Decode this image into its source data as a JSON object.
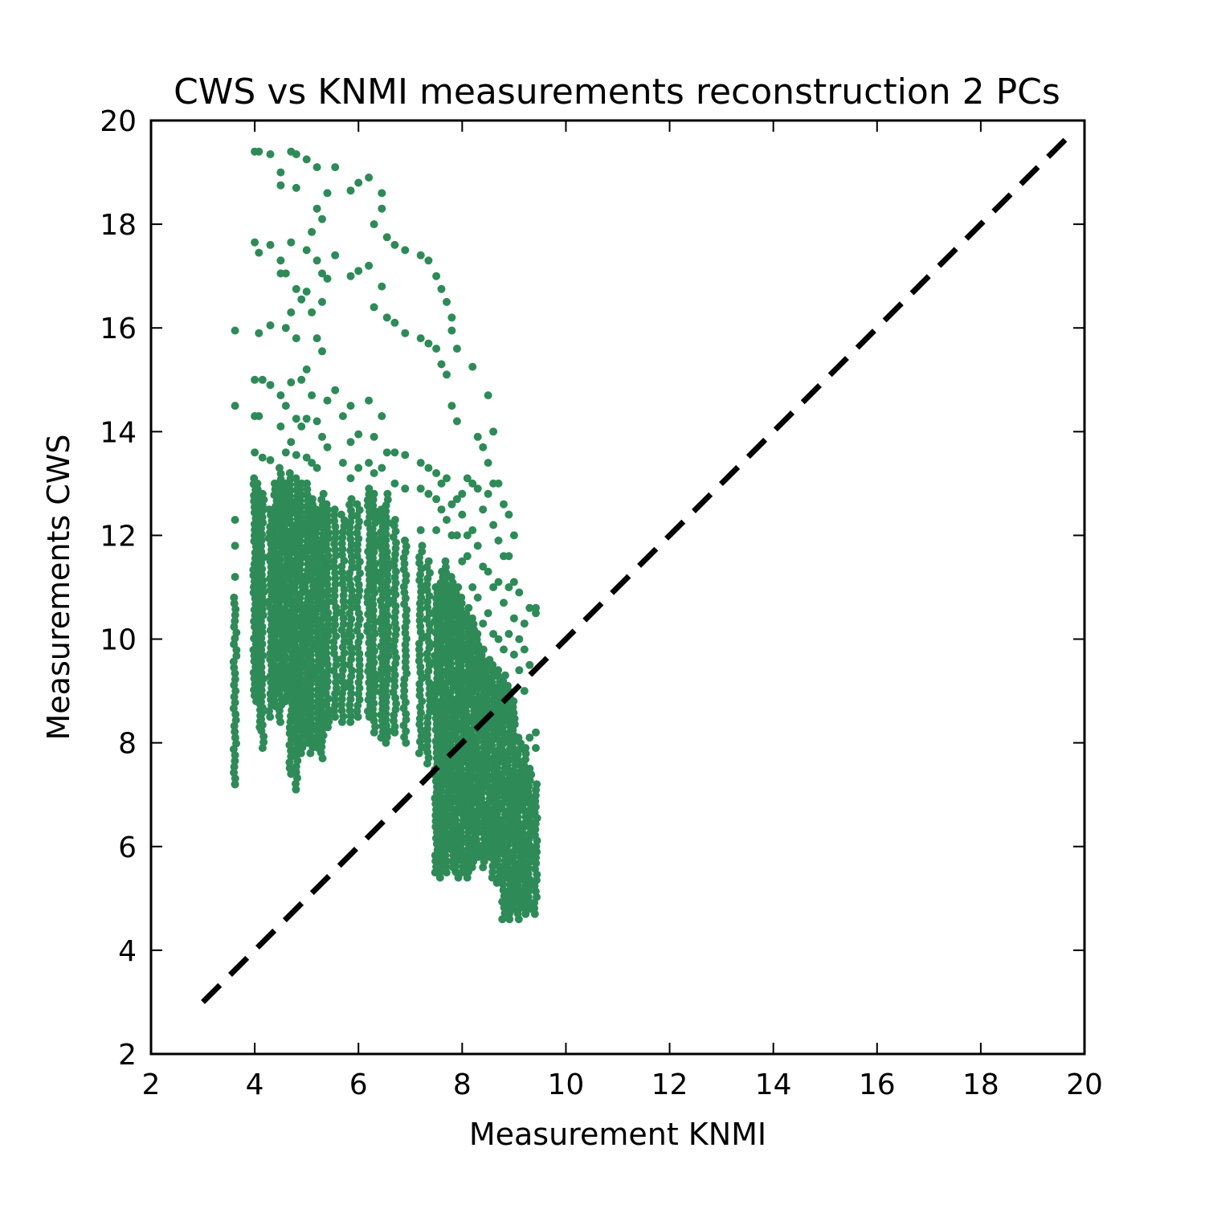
{
  "chart_data": {
    "type": "scatter",
    "title": "CWS vs KNMI measurements reconstruction 2 PCs",
    "xlabel": "Measurement KNMI",
    "ylabel": "Measurements CWS",
    "xlim": [
      2,
      20
    ],
    "ylim": [
      2,
      20
    ],
    "xticks": [
      "2",
      "4",
      "6",
      "8",
      "10",
      "12",
      "14",
      "16",
      "18",
      "20"
    ],
    "yticks": [
      "2",
      "4",
      "6",
      "8",
      "10",
      "12",
      "14",
      "16",
      "18",
      "20"
    ],
    "grid": false,
    "point_color": "#2e8b57",
    "reference_line": {
      "style": "dashed",
      "color": "#000000",
      "x": [
        3.0,
        19.75
      ],
      "y": [
        3.0,
        19.75
      ]
    },
    "columns": [
      {
        "x": 3.62,
        "ymin": 7.2,
        "ymax": 10.8,
        "scatter": [
          7.2,
          11.2,
          11.8,
          12.3,
          14.5,
          15.95
        ]
      },
      {
        "x": 4.0,
        "ymin": 8.8,
        "ymax": 13.1,
        "scatter": [
          13.6,
          14.3,
          15.0,
          17.65,
          19.4
        ]
      },
      {
        "x": 4.08,
        "ymin": 8.3,
        "ymax": 13.0,
        "scatter": [
          14.3,
          15.9,
          17.45,
          19.4
        ]
      },
      {
        "x": 4.15,
        "ymin": 7.9,
        "ymax": 12.8,
        "scatter": [
          13.5,
          15.0
        ]
      },
      {
        "x": 4.3,
        "ymin": 8.5,
        "ymax": 12.5,
        "scatter": [
          13.45,
          14.9,
          16.05,
          17.6,
          19.35
        ]
      },
      {
        "x": 4.4,
        "ymin": 8.7,
        "ymax": 13.0
      },
      {
        "x": 4.5,
        "ymin": 8.4,
        "ymax": 13.3,
        "scatter": [
          14.1,
          14.7,
          17.05,
          17.3,
          18.75,
          19.0
        ]
      },
      {
        "x": 4.6,
        "ymin": 8.8,
        "ymax": 13.0,
        "scatter": [
          13.6,
          14.5,
          16.0,
          17.05
        ]
      },
      {
        "x": 4.7,
        "ymin": 7.4,
        "ymax": 13.2,
        "scatter": [
          13.8,
          14.95,
          16.3,
          17.65,
          19.4
        ]
      },
      {
        "x": 4.8,
        "ymin": 7.1,
        "ymax": 13.1,
        "scatter": [
          13.55,
          14.25,
          15.8,
          16.75,
          18.7,
          19.35
        ]
      },
      {
        "x": 4.9,
        "ymin": 7.8,
        "ymax": 13.0,
        "scatter": [
          14.1,
          15.0,
          16.55
        ]
      },
      {
        "x": 5.0,
        "ymin": 8.0,
        "ymax": 13.0,
        "scatter": [
          13.5,
          14.25,
          15.2,
          16.7,
          17.5,
          19.25
        ]
      },
      {
        "x": 5.1,
        "ymin": 7.8,
        "ymax": 12.7,
        "scatter": [
          13.4,
          14.7,
          16.3,
          17.85
        ]
      },
      {
        "x": 5.2,
        "ymin": 7.9,
        "ymax": 12.5,
        "scatter": [
          13.3,
          14.2,
          15.8,
          17.3,
          18.3,
          19.1
        ]
      },
      {
        "x": 5.3,
        "ymin": 7.7,
        "ymax": 12.8,
        "scatter": [
          13.9,
          15.55,
          16.5,
          17.05,
          18.1
        ]
      },
      {
        "x": 5.4,
        "ymin": 8.3,
        "ymax": 12.6,
        "scatter": [
          13.7,
          14.6,
          16.95,
          18.6
        ]
      },
      {
        "x": 5.55,
        "ymin": 8.5,
        "ymax": 12.5,
        "scatter": [
          14.8,
          17.4,
          19.1
        ]
      },
      {
        "x": 5.7,
        "ymin": 8.4,
        "ymax": 12.4,
        "scatter": [
          13.4,
          14.3
        ]
      },
      {
        "x": 5.85,
        "ymin": 8.4,
        "ymax": 12.7,
        "scatter": [
          13.1,
          13.8,
          14.5,
          17.0,
          18.65
        ]
      },
      {
        "x": 6.0,
        "ymin": 8.5,
        "ymax": 12.6,
        "scatter": [
          13.3,
          13.95,
          17.1,
          18.8
        ]
      },
      {
        "x": 6.2,
        "ymin": 8.5,
        "ymax": 12.9,
        "scatter": [
          13.4,
          14.6,
          17.2,
          18.9
        ]
      },
      {
        "x": 6.3,
        "ymin": 8.2,
        "ymax": 12.8,
        "scatter": [
          13.2,
          13.9,
          16.4,
          18.0
        ]
      },
      {
        "x": 6.45,
        "ymin": 8.1,
        "ymax": 12.5,
        "scatter": [
          13.3,
          14.3,
          16.8,
          18.3,
          18.6
        ]
      },
      {
        "x": 6.55,
        "ymin": 8.0,
        "ymax": 12.8,
        "scatter": [
          13.6,
          16.2,
          17.75
        ]
      },
      {
        "x": 6.7,
        "ymin": 8.2,
        "ymax": 12.3,
        "scatter": [
          13.0,
          13.6,
          16.1,
          17.6
        ]
      },
      {
        "x": 6.9,
        "ymin": 8.0,
        "ymax": 11.9,
        "scatter": [
          12.9,
          13.55,
          15.9,
          17.5
        ]
      },
      {
        "x": 7.2,
        "ymin": 7.8,
        "ymax": 11.8,
        "scatter": [
          12.1,
          12.9,
          13.4,
          15.8,
          17.4
        ]
      },
      {
        "x": 7.35,
        "ymin": 7.6,
        "ymax": 11.5,
        "scatter": [
          12.8,
          13.3,
          15.7,
          17.3
        ]
      },
      {
        "x": 7.5,
        "ymin": 5.5,
        "ymax": 11.0,
        "scatter": [
          12.1,
          12.7,
          13.2,
          15.6,
          17.0
        ]
      },
      {
        "x": 7.6,
        "ymin": 5.4,
        "ymax": 11.3,
        "scatter": [
          12.5,
          13.0,
          15.3,
          16.75
        ]
      },
      {
        "x": 7.7,
        "ymin": 5.5,
        "ymax": 11.5,
        "scatter": [
          12.3,
          13.1,
          15.1,
          16.5
        ]
      },
      {
        "x": 7.8,
        "ymin": 5.6,
        "ymax": 11.2,
        "scatter": [
          12.0,
          12.6,
          14.5,
          15.95,
          16.2
        ]
      },
      {
        "x": 7.9,
        "ymin": 5.4,
        "ymax": 11.0,
        "scatter": [
          12.0,
          12.7,
          14.2,
          15.6
        ]
      },
      {
        "x": 8.0,
        "ymin": 5.5,
        "ymax": 10.8,
        "scatter": [
          11.5,
          12.4,
          12.8
        ]
      },
      {
        "x": 8.1,
        "ymin": 5.4,
        "ymax": 10.6,
        "scatter": [
          11.6,
          12.0,
          13.1
        ]
      },
      {
        "x": 8.2,
        "ymin": 5.6,
        "ymax": 10.4,
        "scatter": [
          11.0,
          12.1,
          13.0,
          15.25
        ]
      },
      {
        "x": 8.3,
        "ymin": 5.8,
        "ymax": 10.1,
        "scatter": [
          10.8,
          11.8,
          12.9,
          13.9
        ]
      },
      {
        "x": 8.4,
        "ymin": 5.6,
        "ymax": 9.8,
        "scatter": [
          10.3,
          11.4,
          12.5,
          13.7
        ]
      },
      {
        "x": 8.5,
        "ymin": 5.8,
        "ymax": 9.6,
        "scatter": [
          10.5,
          11.3,
          12.8,
          13.4,
          14.7
        ]
      },
      {
        "x": 8.6,
        "ymin": 5.4,
        "ymax": 9.5,
        "scatter": [
          10.1,
          11.0,
          12.2,
          13.0,
          14.0
        ]
      },
      {
        "x": 8.7,
        "ymin": 5.3,
        "ymax": 9.4,
        "scatter": [
          10.0,
          11.1,
          11.9,
          13.0
        ]
      },
      {
        "x": 8.8,
        "ymin": 4.6,
        "ymax": 9.3,
        "scatter": [
          9.8,
          10.7,
          11.6,
          12.6
        ]
      },
      {
        "x": 8.9,
        "ymin": 4.6,
        "ymax": 9.1,
        "scatter": [
          10.1,
          11.0,
          11.6,
          12.4
        ]
      },
      {
        "x": 9.0,
        "ymin": 4.8,
        "ymax": 8.8,
        "scatter": [
          9.7,
          10.4,
          11.1,
          12.0
        ]
      },
      {
        "x": 9.1,
        "ymin": 4.6,
        "ymax": 8.1,
        "scatter": [
          9.4,
          10.0,
          10.9
        ]
      },
      {
        "x": 9.2,
        "ymin": 4.7,
        "ymax": 7.9,
        "scatter": [
          9.0,
          9.8,
          10.3
        ]
      },
      {
        "x": 9.3,
        "ymin": 4.8,
        "ymax": 7.5,
        "scatter": [
          8.1,
          9.5,
          10.6
        ]
      },
      {
        "x": 9.42,
        "ymin": 4.7,
        "ymax": 7.2,
        "scatter": [
          7.9,
          8.2,
          10.5,
          10.6
        ]
      }
    ]
  }
}
